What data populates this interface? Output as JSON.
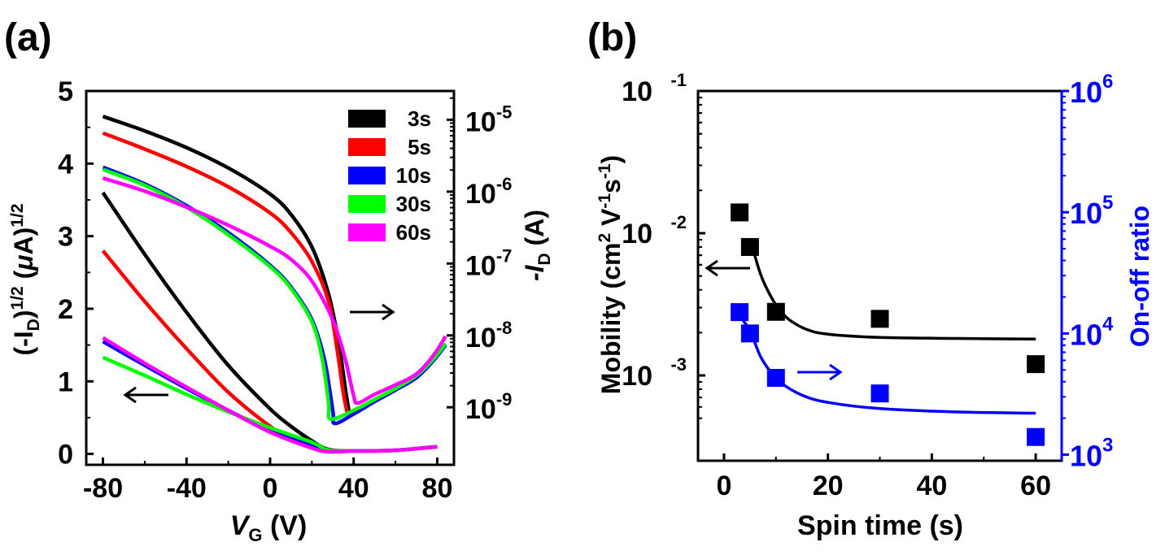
{
  "chart_data": [
    {
      "panel_label": "(a)",
      "type": "line",
      "x_ticks": [
        "-80",
        "-40",
        "0",
        "40",
        "80"
      ],
      "xlim": [
        -88,
        88
      ],
      "y_left_ticks": [
        "0",
        "1",
        "2",
        "3",
        "4",
        "5"
      ],
      "ylim_left": [
        -0.15,
        5.0
      ],
      "y_right_ticks": [
        {
          "base": "10",
          "exp": "-9",
          "value": 1e-09
        },
        {
          "base": "10",
          "exp": "-8",
          "value": 1e-08
        },
        {
          "base": "10",
          "exp": "-7",
          "value": 1e-07
        },
        {
          "base": "10",
          "exp": "-6",
          "value": 1e-06
        },
        {
          "base": "10",
          "exp": "-5",
          "value": 1e-05
        }
      ],
      "ylim_right_log": [
        -9.8,
        -4.6
      ],
      "y_right_scale": "log",
      "xlabel": {
        "main": "V",
        "sub": "G",
        "unit": " (V)"
      },
      "ylabel_left": {
        "p1": "(-I",
        "sub": "D",
        "p2": ")",
        "sup1": "1/2",
        "p3": " (",
        "mu": "μ",
        "p4": "A)",
        "sup2": "1/2"
      },
      "ylabel_right": {
        "p1": "-I",
        "sub": "D",
        "p2": " (A)"
      },
      "legend": {
        "placement": "top-right",
        "labels": [
          "3s",
          "5s",
          "10s",
          "30s",
          "60s"
        ]
      },
      "series": [
        {
          "name": "3s",
          "color": "#000000",
          "log_curve": [
            [
              -80,
              4.65
            ],
            [
              -60,
              4.45
            ],
            [
              -40,
              4.22
            ],
            [
              -20,
              3.94
            ],
            [
              0,
              3.58
            ],
            [
              10,
              3.3
            ],
            [
              20,
              2.85
            ],
            [
              28,
              2.2
            ],
            [
              33,
              1.5
            ],
            [
              36,
              0.9
            ],
            [
              38,
              0.55
            ]
          ],
          "sqrt_curve": [
            [
              -80,
              3.6
            ],
            [
              -60,
              2.75
            ],
            [
              -40,
              1.95
            ],
            [
              -20,
              1.22
            ],
            [
              0,
              0.62
            ],
            [
              10,
              0.38
            ],
            [
              20,
              0.18
            ],
            [
              28,
              0.06
            ],
            [
              40,
              0.04
            ],
            [
              60,
              0.05
            ],
            [
              80,
              0.1
            ]
          ]
        },
        {
          "name": "5s",
          "color": "#ff0000",
          "log_curve": [
            [
              -80,
              4.42
            ],
            [
              -60,
              4.2
            ],
            [
              -40,
              3.96
            ],
            [
              -20,
              3.68
            ],
            [
              0,
              3.32
            ],
            [
              10,
              3.05
            ],
            [
              20,
              2.65
            ],
            [
              28,
              2.1
            ],
            [
              32,
              1.45
            ],
            [
              35,
              0.85
            ],
            [
              37,
              0.55
            ]
          ],
          "sqrt_curve": [
            [
              -80,
              2.8
            ],
            [
              -60,
              2.1
            ],
            [
              -40,
              1.45
            ],
            [
              -20,
              0.85
            ],
            [
              0,
              0.38
            ],
            [
              10,
              0.22
            ],
            [
              20,
              0.1
            ],
            [
              28,
              0.04
            ],
            [
              40,
              0.04
            ],
            [
              60,
              0.05
            ],
            [
              80,
              0.1
            ]
          ]
        },
        {
          "name": "10s",
          "color": "#0000ff",
          "log_curve": [
            [
              -80,
              3.95
            ],
            [
              -60,
              3.72
            ],
            [
              -40,
              3.42
            ],
            [
              -20,
              3.05
            ],
            [
              0,
              2.6
            ],
            [
              10,
              2.3
            ],
            [
              20,
              1.85
            ],
            [
              26,
              1.3
            ],
            [
              30,
              0.6
            ],
            [
              31,
              0.42
            ],
            [
              40,
              0.55
            ],
            [
              50,
              0.72
            ],
            [
              60,
              0.88
            ],
            [
              70,
              1.05
            ],
            [
              78,
              1.28
            ],
            [
              84,
              1.5
            ]
          ],
          "sqrt_curve": [
            [
              -80,
              1.55
            ],
            [
              -60,
              1.22
            ],
            [
              -40,
              0.9
            ],
            [
              -20,
              0.6
            ],
            [
              0,
              0.32
            ],
            [
              20,
              0.12
            ],
            [
              28,
              0.04
            ],
            [
              40,
              0.04
            ],
            [
              60,
              0.05
            ],
            [
              80,
              0.1
            ]
          ]
        },
        {
          "name": "30s",
          "color": "#00ff00",
          "log_curve": [
            [
              -80,
              3.92
            ],
            [
              -60,
              3.7
            ],
            [
              -40,
              3.4
            ],
            [
              -20,
              3.02
            ],
            [
              0,
              2.58
            ],
            [
              10,
              2.28
            ],
            [
              20,
              1.82
            ],
            [
              25,
              1.3
            ],
            [
              28,
              0.7
            ],
            [
              29,
              0.48
            ],
            [
              40,
              0.6
            ],
            [
              50,
              0.75
            ],
            [
              60,
              0.9
            ],
            [
              70,
              1.08
            ],
            [
              78,
              1.3
            ],
            [
              84,
              1.52
            ]
          ],
          "sqrt_curve": [
            [
              -80,
              1.33
            ],
            [
              -60,
              1.08
            ],
            [
              -40,
              0.82
            ],
            [
              -20,
              0.58
            ],
            [
              0,
              0.36
            ],
            [
              20,
              0.16
            ],
            [
              28,
              0.05
            ],
            [
              40,
              0.04
            ],
            [
              60,
              0.05
            ],
            [
              80,
              0.1
            ]
          ]
        },
        {
          "name": "60s",
          "color": "#ff00ff",
          "log_curve": [
            [
              -80,
              3.8
            ],
            [
              -60,
              3.62
            ],
            [
              -40,
              3.4
            ],
            [
              -20,
              3.15
            ],
            [
              0,
              2.86
            ],
            [
              10,
              2.68
            ],
            [
              20,
              2.38
            ],
            [
              30,
              1.85
            ],
            [
              36,
              1.3
            ],
            [
              40,
              0.8
            ],
            [
              42,
              0.7
            ],
            [
              50,
              0.82
            ],
            [
              60,
              0.95
            ],
            [
              70,
              1.1
            ],
            [
              78,
              1.35
            ],
            [
              84,
              1.62
            ]
          ],
          "sqrt_curve": [
            [
              -80,
              1.6
            ],
            [
              -60,
              1.25
            ],
            [
              -40,
              0.92
            ],
            [
              -20,
              0.6
            ],
            [
              0,
              0.3
            ],
            [
              20,
              0.08
            ],
            [
              28,
              0.03
            ],
            [
              40,
              0.04
            ],
            [
              60,
              0.05
            ],
            [
              80,
              0.1
            ]
          ]
        }
      ],
      "annotations": [
        {
          "text": "←",
          "meaning": "left arrow",
          "at": [
            -65,
            0.85
          ]
        },
        {
          "text": "→",
          "meaning": "right arrow",
          "at": [
            45,
            1.95
          ]
        }
      ]
    },
    {
      "panel_label": "(b)",
      "type": "scatter",
      "x_ticks": [
        "0",
        "20",
        "40",
        "60"
      ],
      "xlim": [
        -5,
        65
      ],
      "y_left_ticks": [
        {
          "base": "10",
          "exp": "-3",
          "value": 0.001
        },
        {
          "base": "10",
          "exp": "-2",
          "value": 0.01
        },
        {
          "base": "10",
          "exp": "-1",
          "value": 0.1
        }
      ],
      "ylim_left_log": [
        -3.6,
        -1.0
      ],
      "y_left_scale": "log",
      "y_right_ticks": [
        {
          "base": "10",
          "exp": "3",
          "value": 1000
        },
        {
          "base": "10",
          "exp": "4",
          "value": 10000
        },
        {
          "base": "10",
          "exp": "5",
          "value": 100000
        },
        {
          "base": "10",
          "exp": "6",
          "value": 1000000
        }
      ],
      "ylim_right_log": [
        2.95,
        6.0
      ],
      "y_right_scale": "log",
      "right_axis_color": "#0000ff",
      "xlabel": "Spin time (s)",
      "ylabel_left": {
        "p1": "Mobility (cm",
        "sup1": "2",
        "p2": " V",
        "sup2": "-1",
        "p3": "s",
        "sup3": "-1",
        "p4": ")"
      },
      "ylabel_right": "On-off ratio",
      "series": [
        {
          "name": "",
          "axis": "left",
          "color": "#000000",
          "marker": "square",
          "x": [
            3,
            5,
            10,
            30,
            60
          ],
          "y": [
            0.014,
            0.008,
            0.0028,
            0.0025,
            0.0012
          ],
          "fit": [
            [
              5,
              0.0092
            ],
            [
              7,
              0.0052
            ],
            [
              9,
              0.0036
            ],
            [
              11,
              0.0028
            ],
            [
              13,
              0.0024
            ],
            [
              16,
              0.0021
            ],
            [
              20,
              0.00195
            ],
            [
              30,
              0.00185
            ],
            [
              45,
              0.00182
            ],
            [
              60,
              0.0018
            ]
          ]
        },
        {
          "name": "",
          "axis": "right",
          "color": "#0000ff",
          "marker": "square",
          "x": [
            3,
            5,
            10,
            30,
            60
          ],
          "y": [
            15000,
            10000,
            4300,
            3200,
            1400
          ],
          "fit": [
            [
              3,
              14000
            ],
            [
              5,
              10500
            ],
            [
              7,
              6500
            ],
            [
              9,
              4800
            ],
            [
              11,
              3900
            ],
            [
              15,
              3100
            ],
            [
              20,
              2700
            ],
            [
              30,
              2400
            ],
            [
              45,
              2250
            ],
            [
              60,
              2200
            ]
          ]
        }
      ],
      "annotations": [
        {
          "text": "←",
          "meaning": "black arrow pointing to left axis",
          "at": [
            1,
            0.0062
          ]
        },
        {
          "text": "→",
          "meaning": "blue arrow pointing to right axis",
          "at": [
            19,
            4400
          ]
        }
      ]
    }
  ]
}
